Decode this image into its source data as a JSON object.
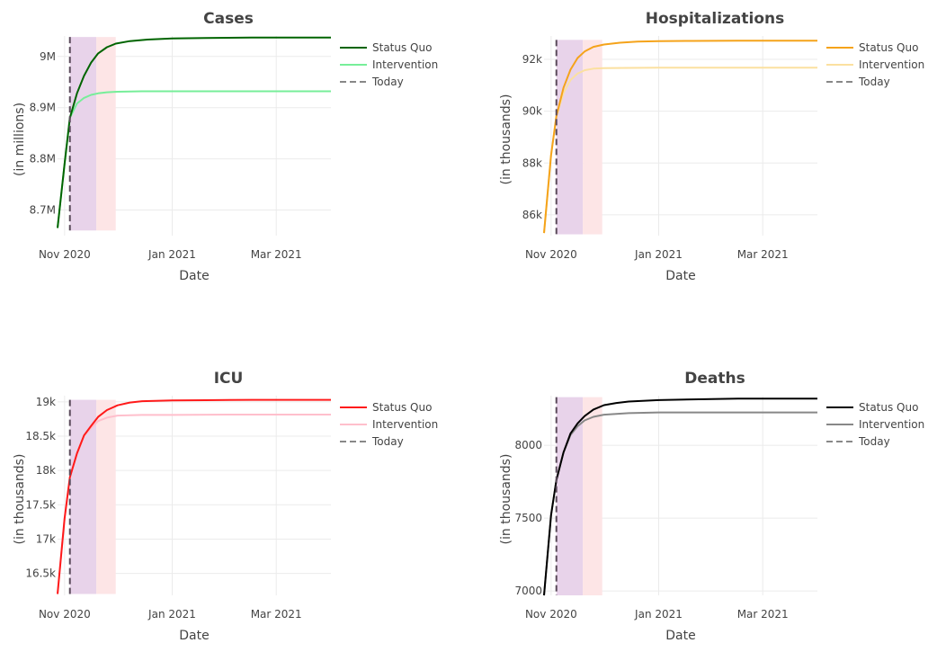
{
  "chart_data": [
    {
      "type": "line",
      "title": "Cases",
      "xlabel": "Date",
      "ylabel": "(in millions)",
      "x_ticks": [
        "Nov 2020",
        "Jan 2021",
        "Mar 2021"
      ],
      "y_ticks": [
        {
          "value": 8700000,
          "label": "8.7M"
        },
        {
          "value": 8800000,
          "label": "8.8M"
        },
        {
          "value": 8900000,
          "label": "8.9M"
        },
        {
          "value": 9000000,
          "label": "9M"
        }
      ],
      "xlim": [
        "2020-10-28",
        "2021-04-01"
      ],
      "ylim": [
        8650000,
        9040000
      ],
      "today": "2020-11-04",
      "bands": [
        {
          "start": "2020-11-04",
          "end": "2020-11-19",
          "color": "#e8d3ea"
        },
        {
          "start": "2020-11-19",
          "end": "2020-11-30",
          "color": "#fde5e6"
        }
      ],
      "shade_ylim": [
        8660000,
        9038000
      ],
      "series": [
        {
          "name": "Status Quo",
          "color": "#006400",
          "x": [
            "2020-10-28",
            "2020-11-01",
            "2020-11-04",
            "2020-11-08",
            "2020-11-12",
            "2020-11-16",
            "2020-11-20",
            "2020-11-25",
            "2020-11-30",
            "2020-12-08",
            "2020-12-18",
            "2021-01-01",
            "2021-01-20",
            "2021-02-15",
            "2021-04-01"
          ],
          "y": [
            8665000,
            8790000,
            8880000,
            8928000,
            8962000,
            8988000,
            9006000,
            9018000,
            9025000,
            9030000,
            9033000,
            9035000,
            9036000,
            9037000,
            9037000
          ]
        },
        {
          "name": "Intervention",
          "color": "#77ee99",
          "x": [
            "2020-10-28",
            "2020-11-01",
            "2020-11-04",
            "2020-11-08",
            "2020-11-12",
            "2020-11-16",
            "2020-11-20",
            "2020-11-25",
            "2020-12-01",
            "2020-12-15",
            "2021-01-01",
            "2021-02-01",
            "2021-04-01"
          ],
          "y": [
            8665000,
            8790000,
            8880000,
            8908000,
            8919000,
            8925000,
            8928000,
            8930000,
            8931000,
            8932000,
            8932000,
            8932000,
            8932000
          ]
        },
        {
          "name": "Today",
          "color": "#888888",
          "dash": true
        }
      ]
    },
    {
      "type": "line",
      "title": "Hospitalizations",
      "xlabel": "Date",
      "ylabel": "(in thousands)",
      "x_ticks": [
        "Nov 2020",
        "Jan 2021",
        "Mar 2021"
      ],
      "y_ticks": [
        {
          "value": 86000,
          "label": "86k"
        },
        {
          "value": 88000,
          "label": "88k"
        },
        {
          "value": 90000,
          "label": "90k"
        },
        {
          "value": 92000,
          "label": "92k"
        }
      ],
      "xlim": [
        "2020-10-28",
        "2021-04-01"
      ],
      "ylim": [
        85200,
        92900
      ],
      "today": "2020-11-04",
      "bands": [
        {
          "start": "2020-11-04",
          "end": "2020-11-19",
          "color": "#e8d3ea"
        },
        {
          "start": "2020-11-19",
          "end": "2020-11-30",
          "color": "#fde5e6"
        }
      ],
      "shade_ylim": [
        85250,
        92750
      ],
      "series": [
        {
          "name": "Status Quo",
          "color": "#f5a31a",
          "x": [
            "2020-10-28",
            "2020-11-01",
            "2020-11-04",
            "2020-11-08",
            "2020-11-12",
            "2020-11-16",
            "2020-11-20",
            "2020-11-25",
            "2020-12-01",
            "2020-12-10",
            "2020-12-20",
            "2021-01-01",
            "2021-01-20",
            "2021-02-15",
            "2021-04-01"
          ],
          "y": [
            85300,
            88300,
            89800,
            90900,
            91600,
            92050,
            92300,
            92480,
            92570,
            92640,
            92680,
            92700,
            92710,
            92720,
            92720
          ]
        },
        {
          "name": "Intervention",
          "color": "#fbe0a0",
          "x": [
            "2020-10-28",
            "2020-11-01",
            "2020-11-04",
            "2020-11-08",
            "2020-11-12",
            "2020-11-16",
            "2020-11-20",
            "2020-11-25",
            "2020-12-01",
            "2020-12-15",
            "2021-01-01",
            "2021-02-01",
            "2021-04-01"
          ],
          "y": [
            85300,
            88300,
            89800,
            90700,
            91200,
            91450,
            91580,
            91640,
            91660,
            91670,
            91680,
            91680,
            91680
          ]
        },
        {
          "name": "Today",
          "color": "#888888",
          "dash": true
        }
      ]
    },
    {
      "type": "line",
      "title": "ICU",
      "xlabel": "Date",
      "ylabel": "(in thousands)",
      "x_ticks": [
        "Nov 2020",
        "Jan 2021",
        "Mar 2021"
      ],
      "y_ticks": [
        {
          "value": 16500,
          "label": "16.5k"
        },
        {
          "value": 17000,
          "label": "17k"
        },
        {
          "value": 17500,
          "label": "17.5k"
        },
        {
          "value": 18000,
          "label": "18k"
        },
        {
          "value": 18500,
          "label": "18.5k"
        },
        {
          "value": 19000,
          "label": "19k"
        }
      ],
      "xlim": [
        "2020-10-28",
        "2021-04-01"
      ],
      "ylim": [
        16180,
        19090
      ],
      "today": "2020-11-04",
      "bands": [
        {
          "start": "2020-11-04",
          "end": "2020-11-19",
          "color": "#e8d3ea"
        },
        {
          "start": "2020-11-19",
          "end": "2020-11-30",
          "color": "#fde5e6"
        }
      ],
      "shade_ylim": [
        16200,
        19030
      ],
      "series": [
        {
          "name": "Status Quo",
          "color": "#ff1a1a",
          "x": [
            "2020-10-28",
            "2020-11-01",
            "2020-11-04",
            "2020-11-08",
            "2020-11-12",
            "2020-11-16",
            "2020-11-20",
            "2020-11-25",
            "2020-12-01",
            "2020-12-08",
            "2020-12-15",
            "2021-01-01",
            "2021-01-20",
            "2021-02-15",
            "2021-04-01"
          ],
          "y": [
            16200,
            17300,
            17900,
            18250,
            18510,
            18650,
            18780,
            18880,
            18950,
            18990,
            19010,
            19020,
            19025,
            19030,
            19030
          ]
        },
        {
          "name": "Intervention",
          "color": "#ffbfcc",
          "x": [
            "2020-10-28",
            "2020-11-01",
            "2020-11-04",
            "2020-11-08",
            "2020-11-12",
            "2020-11-16",
            "2020-11-20",
            "2020-11-25",
            "2020-12-01",
            "2020-12-15",
            "2021-01-01",
            "2021-02-01",
            "2021-04-01"
          ],
          "y": [
            16200,
            17300,
            17900,
            18230,
            18500,
            18620,
            18720,
            18770,
            18800,
            18810,
            18810,
            18815,
            18815
          ]
        },
        {
          "name": "Today",
          "color": "#888888",
          "dash": true
        }
      ]
    },
    {
      "type": "line",
      "title": "Deaths",
      "xlabel": "Date",
      "ylabel": "(in thousands)",
      "x_ticks": [
        "Nov 2020",
        "Jan 2021",
        "Mar 2021"
      ],
      "y_ticks": [
        {
          "value": 7000,
          "label": "7000"
        },
        {
          "value": 7500,
          "label": "7500"
        },
        {
          "value": 8000,
          "label": "8000"
        }
      ],
      "xlim": [
        "2020-10-28",
        "2021-04-01"
      ],
      "ylim": [
        6970,
        8340
      ],
      "today": "2020-11-04",
      "bands": [
        {
          "start": "2020-11-04",
          "end": "2020-11-19",
          "color": "#e8d3ea"
        },
        {
          "start": "2020-11-19",
          "end": "2020-11-30",
          "color": "#fde5e6"
        }
      ],
      "shade_ylim": [
        6970,
        8330
      ],
      "series": [
        {
          "name": "Status Quo",
          "color": "#000000",
          "x": [
            "2020-10-28",
            "2020-11-01",
            "2020-11-04",
            "2020-11-08",
            "2020-11-12",
            "2020-11-16",
            "2020-11-20",
            "2020-11-25",
            "2020-12-01",
            "2020-12-08",
            "2020-12-15",
            "2021-01-01",
            "2021-01-20",
            "2021-02-15",
            "2021-04-01"
          ],
          "y": [
            6970,
            7520,
            7760,
            7950,
            8080,
            8150,
            8200,
            8245,
            8275,
            8290,
            8300,
            8310,
            8315,
            8320,
            8320
          ]
        },
        {
          "name": "Intervention",
          "color": "#888888",
          "x": [
            "2020-10-28",
            "2020-11-01",
            "2020-11-04",
            "2020-11-08",
            "2020-11-12",
            "2020-11-16",
            "2020-11-20",
            "2020-11-25",
            "2020-12-01",
            "2020-12-15",
            "2021-01-01",
            "2021-02-01",
            "2021-04-01"
          ],
          "y": [
            6970,
            7520,
            7760,
            7950,
            8070,
            8130,
            8170,
            8195,
            8210,
            8220,
            8225,
            8225,
            8225
          ]
        },
        {
          "name": "Today",
          "color": "#888888",
          "dash": true
        }
      ]
    }
  ]
}
